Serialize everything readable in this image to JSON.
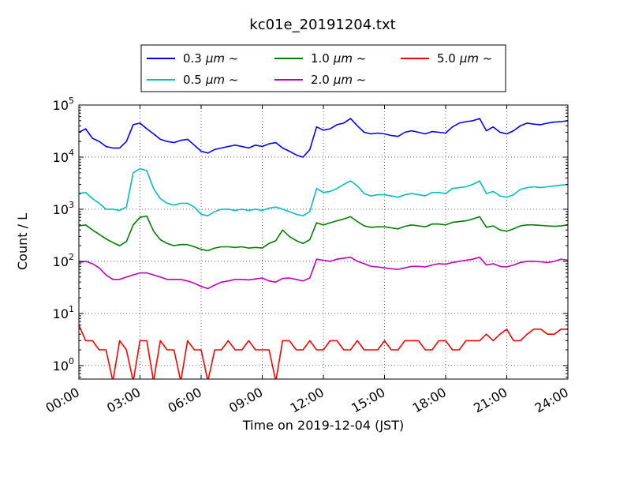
{
  "chart_data": {
    "type": "line",
    "title": "kc01e_20191204.txt",
    "xlabel": "Time on 2019-12-04 (JST)",
    "ylabel": "Count / L",
    "yscale": "log",
    "ylim": [
      0.55,
      100000
    ],
    "x_ticks": [
      "00:00",
      "03:00",
      "06:00",
      "09:00",
      "12:00",
      "15:00",
      "18:00",
      "21:00",
      "24:00"
    ],
    "y_ticks": [
      {
        "value": 1,
        "base": "10",
        "exp": "0"
      },
      {
        "value": 10,
        "base": "10",
        "exp": "1"
      },
      {
        "value": 100,
        "base": "10",
        "exp": "2"
      },
      {
        "value": 1000,
        "base": "10",
        "exp": "3"
      },
      {
        "value": 10000,
        "base": "10",
        "exp": "4"
      },
      {
        "value": 100000,
        "base": "10",
        "exp": "5"
      }
    ],
    "grid": true,
    "legend_position": "top-center",
    "x": [
      "00:00",
      "00:20",
      "00:40",
      "01:00",
      "01:20",
      "01:40",
      "02:00",
      "02:20",
      "02:40",
      "03:00",
      "03:20",
      "03:40",
      "04:00",
      "04:20",
      "04:40",
      "05:00",
      "05:20",
      "05:40",
      "06:00",
      "06:20",
      "06:40",
      "07:00",
      "07:20",
      "07:40",
      "08:00",
      "08:20",
      "08:40",
      "09:00",
      "09:20",
      "09:40",
      "10:00",
      "10:20",
      "10:40",
      "11:00",
      "11:20",
      "11:40",
      "12:00",
      "12:20",
      "12:40",
      "13:00",
      "13:20",
      "13:40",
      "14:00",
      "14:20",
      "14:40",
      "15:00",
      "15:20",
      "15:40",
      "16:00",
      "16:20",
      "16:40",
      "17:00",
      "17:20",
      "17:40",
      "18:00",
      "18:20",
      "18:40",
      "19:00",
      "19:20",
      "19:40",
      "20:00",
      "20:20",
      "20:40",
      "21:00",
      "21:20",
      "21:40",
      "22:00",
      "22:20",
      "22:40",
      "23:00",
      "23:20",
      "23:40",
      "24:00"
    ],
    "series": [
      {
        "name": "0.3",
        "unit": "μm ~",
        "color": "#0000ff",
        "values": [
          30000,
          35000,
          23000,
          20000,
          16000,
          15000,
          15000,
          20000,
          42000,
          45000,
          35000,
          28000,
          22000,
          20000,
          19000,
          21000,
          22000,
          17000,
          13000,
          12000,
          14000,
          15000,
          16000,
          17000,
          16000,
          15000,
          17000,
          16000,
          18000,
          19000,
          15000,
          13000,
          11000,
          10000,
          14000,
          38000,
          33000,
          35000,
          42000,
          45000,
          55000,
          40000,
          30000,
          28000,
          29000,
          28000,
          26000,
          25000,
          30000,
          32000,
          30000,
          28000,
          31000,
          30000,
          29000,
          38000,
          45000,
          48000,
          50000,
          55000,
          32000,
          38000,
          30000,
          28000,
          32000,
          40000,
          45000,
          43000,
          42000,
          45000,
          47000,
          48000,
          50000
        ]
      },
      {
        "name": "0.5",
        "unit": "μm ~",
        "color": "#00bfbf",
        "values": [
          2000,
          2100,
          1600,
          1300,
          1000,
          1000,
          950,
          1100,
          5000,
          6000,
          5500,
          2500,
          1600,
          1300,
          1200,
          1300,
          1300,
          1100,
          800,
          750,
          900,
          1000,
          1000,
          950,
          1000,
          950,
          1000,
          950,
          1050,
          1100,
          1000,
          900,
          800,
          750,
          900,
          2500,
          2100,
          2200,
          2500,
          3000,
          3500,
          2800,
          2000,
          1800,
          1900,
          1900,
          1800,
          1700,
          1900,
          2000,
          1900,
          1800,
          2100,
          2100,
          2000,
          2500,
          2600,
          2700,
          3000,
          3500,
          2000,
          2200,
          1800,
          1700,
          1900,
          2400,
          2600,
          2700,
          2600,
          2700,
          2800,
          2900,
          3000
        ]
      },
      {
        "name": "1.0",
        "unit": "μm ~",
        "color": "#008000",
        "values": [
          480,
          500,
          400,
          330,
          270,
          230,
          200,
          240,
          500,
          700,
          740,
          380,
          260,
          220,
          200,
          210,
          210,
          190,
          170,
          160,
          180,
          190,
          190,
          185,
          190,
          180,
          185,
          180,
          220,
          250,
          400,
          300,
          250,
          220,
          260,
          550,
          500,
          550,
          600,
          650,
          720,
          580,
          480,
          450,
          460,
          460,
          440,
          420,
          470,
          500,
          480,
          460,
          520,
          520,
          500,
          560,
          580,
          600,
          650,
          720,
          450,
          480,
          400,
          380,
          420,
          480,
          500,
          500,
          490,
          480,
          470,
          480,
          500
        ]
      },
      {
        "name": "2.0",
        "unit": "μm ~",
        "color": "#bf00bf",
        "values": [
          95,
          100,
          90,
          75,
          55,
          45,
          45,
          50,
          55,
          60,
          60,
          55,
          50,
          45,
          45,
          45,
          42,
          38,
          33,
          30,
          35,
          40,
          42,
          45,
          45,
          44,
          46,
          48,
          42,
          40,
          47,
          48,
          45,
          42,
          48,
          110,
          105,
          100,
          110,
          115,
          120,
          100,
          90,
          80,
          78,
          75,
          72,
          70,
          75,
          80,
          80,
          78,
          85,
          90,
          88,
          95,
          100,
          105,
          110,
          120,
          85,
          90,
          80,
          78,
          85,
          95,
          100,
          100,
          98,
          95,
          100,
          110,
          105
        ]
      },
      {
        "name": "5.0",
        "unit": "μm ~",
        "color": "#ff0000",
        "values": [
          6,
          3,
          3,
          2,
          2,
          0.5,
          3,
          2,
          0.5,
          3,
          3,
          0.5,
          3,
          2,
          2,
          0.5,
          3,
          2,
          2,
          0.5,
          2,
          2,
          3,
          2,
          2,
          3,
          2,
          2,
          2,
          0.5,
          3,
          3,
          2,
          2,
          3,
          2,
          2,
          3,
          3,
          2,
          2,
          3,
          2,
          2,
          2,
          3,
          2,
          2,
          3,
          3,
          3,
          2,
          2,
          3,
          3,
          2,
          2,
          3,
          3,
          3,
          4,
          3,
          4,
          5,
          3,
          3,
          4,
          5,
          5,
          4,
          4,
          5,
          5
        ]
      }
    ]
  }
}
